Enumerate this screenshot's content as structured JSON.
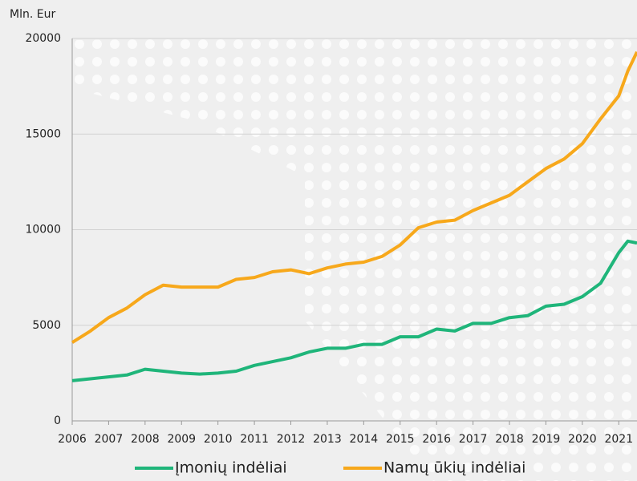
{
  "chart_data": {
    "type": "line",
    "y_label": "Mln. Eur",
    "x": [
      2006,
      2006.5,
      2007,
      2007.5,
      2008,
      2008.5,
      2009,
      2009.5,
      2010,
      2010.5,
      2011,
      2011.5,
      2012,
      2012.5,
      2013,
      2013.5,
      2014,
      2014.5,
      2015,
      2015.5,
      2016,
      2016.5,
      2017,
      2017.5,
      2018,
      2018.5,
      2019,
      2019.5,
      2020,
      2020.5,
      2021,
      2021.25,
      2021.5
    ],
    "series": [
      {
        "name": "Įmonių indėliai",
        "color": "#1fb57a",
        "values": [
          2100,
          2200,
          2300,
          2400,
          2700,
          2600,
          2500,
          2450,
          2500,
          2600,
          2900,
          3100,
          3300,
          3600,
          3800,
          3800,
          4000,
          4000,
          4400,
          4400,
          4800,
          4700,
          5100,
          5100,
          5400,
          5500,
          6000,
          6100,
          6500,
          7200,
          8800,
          9400,
          9300
        ]
      },
      {
        "name": "Namų ūkių indėliai",
        "color": "#f7a81b",
        "values": [
          4100,
          4700,
          5400,
          5900,
          6600,
          7100,
          7000,
          7000,
          7000,
          7400,
          7500,
          7800,
          7900,
          7700,
          8000,
          8200,
          8300,
          8600,
          9200,
          10100,
          10400,
          10500,
          11000,
          11400,
          11800,
          12500,
          13200,
          13700,
          14500,
          15800,
          17000,
          18300,
          19300
        ]
      }
    ],
    "xlim": [
      2006,
      2021.5
    ],
    "xticks": [
      2006,
      2007,
      2008,
      2009,
      2010,
      2011,
      2012,
      2013,
      2014,
      2015,
      2016,
      2017,
      2018,
      2019,
      2020,
      2021
    ],
    "ylim": [
      0,
      20000
    ],
    "yticks": [
      0,
      5000,
      10000,
      15000,
      20000
    ],
    "grid": true,
    "legend": "bottom"
  }
}
